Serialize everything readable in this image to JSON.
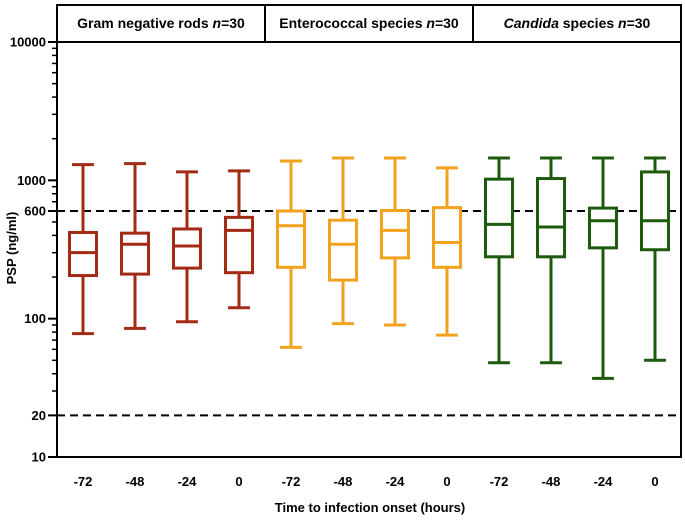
{
  "chart_data": {
    "type": "boxplot",
    "y_scale": "log",
    "ylim": [
      10,
      10000
    ],
    "ylabel": "PSP (ng/ml)",
    "xlabel": "Time to infection onset (hours)",
    "y_ticks": [
      {
        "value": 10,
        "label": "10"
      },
      {
        "value": 20,
        "label": "20"
      },
      {
        "value": 100,
        "label": "100"
      },
      {
        "value": 600,
        "label": "600"
      },
      {
        "value": 1000,
        "label": "1000"
      },
      {
        "value": 10000,
        "label": "10000"
      }
    ],
    "reference_lines": [
      600,
      20
    ],
    "panels": [
      {
        "title": "Gram negative rods ",
        "n_label": "n",
        "n_value": "=30",
        "color": "#a32a14",
        "categories": [
          "-72",
          "-48",
          "-24",
          "0"
        ],
        "boxes": [
          {
            "min": 78,
            "q1": 205,
            "median": 300,
            "q3": 420,
            "max": 1300
          },
          {
            "min": 85,
            "q1": 210,
            "median": 345,
            "q3": 415,
            "max": 1320
          },
          {
            "min": 95,
            "q1": 232,
            "median": 335,
            "q3": 445,
            "max": 1150
          },
          {
            "min": 120,
            "q1": 215,
            "median": 435,
            "q3": 540,
            "max": 1170
          }
        ]
      },
      {
        "title": "Enterococcal species ",
        "n_label": "n",
        "n_value": "=30",
        "color": "#f3a21d",
        "categories": [
          "-72",
          "-48",
          "-24",
          "0"
        ],
        "boxes": [
          {
            "min": 62,
            "q1": 235,
            "median": 470,
            "q3": 600,
            "max": 1380
          },
          {
            "min": 92,
            "q1": 190,
            "median": 345,
            "q3": 515,
            "max": 1450
          },
          {
            "min": 90,
            "q1": 275,
            "median": 435,
            "q3": 605,
            "max": 1450
          },
          {
            "min": 76,
            "q1": 235,
            "median": 355,
            "q3": 635,
            "max": 1230
          }
        ]
      },
      {
        "title": "Candida",
        "title_suffix": " species ",
        "n_label": "n",
        "n_value": "=30",
        "color": "#1c5b0e",
        "categories": [
          "-72",
          "-48",
          "-24",
          "0"
        ],
        "boxes": [
          {
            "min": 48,
            "q1": 280,
            "median": 480,
            "q3": 1020,
            "max": 1450
          },
          {
            "min": 48,
            "q1": 280,
            "median": 460,
            "q3": 1030,
            "max": 1450
          },
          {
            "min": 37,
            "q1": 325,
            "median": 510,
            "q3": 630,
            "max": 1450
          },
          {
            "min": 50,
            "q1": 315,
            "median": 510,
            "q3": 1150,
            "max": 1450
          }
        ]
      }
    ]
  }
}
